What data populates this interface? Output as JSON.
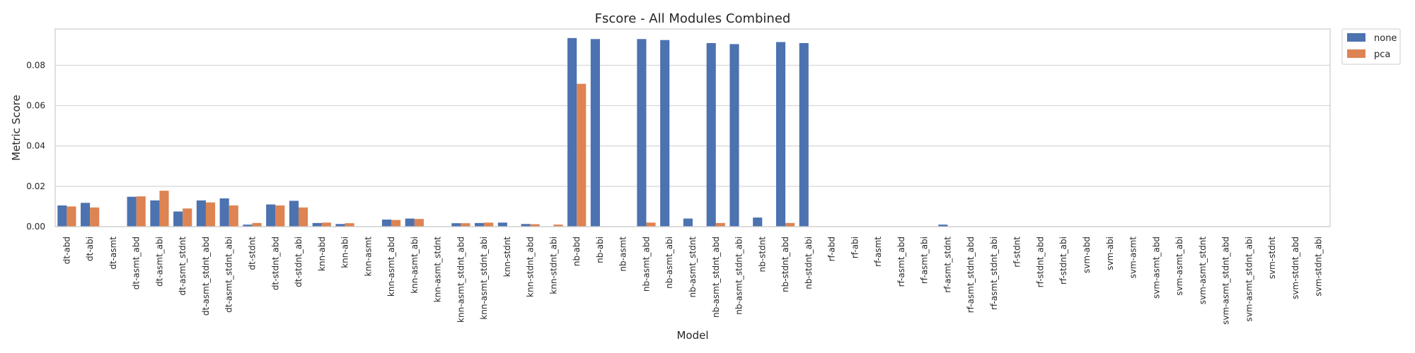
{
  "chart_data": {
    "type": "bar",
    "title": "Fscore - All Modules Combined",
    "xlabel": "Model",
    "ylabel": "Metric Score",
    "ylim": [
      0,
      0.098
    ],
    "yticks": [
      "0.00",
      "0.02",
      "0.04",
      "0.06",
      "0.08"
    ],
    "grid": true,
    "legend_position": "outside-top-right",
    "categories": [
      "dt-abd",
      "dt-abi",
      "dt-asmt",
      "dt-asmt_abd",
      "dt-asmt_abi",
      "dt-asmt_stdnt",
      "dt-asmt_stdnt_abd",
      "dt-asmt_stdnt_abi",
      "dt-stdnt",
      "dt-stdnt_abd",
      "dt-stdnt_abi",
      "knn-abd",
      "knn-abi",
      "knn-asmt",
      "knn-asmt_abd",
      "knn-asmt_abi",
      "knn-asmt_stdnt",
      "knn-asmt_stdnt_abd",
      "knn-asmt_stdnt_abi",
      "knn-stdnt",
      "knn-stdnt_abd",
      "knn-stdnt_abi",
      "nb-abd",
      "nb-abi",
      "nb-asmt",
      "nb-asmt_abd",
      "nb-asmt_abi",
      "nb-asmt_stdnt",
      "nb-asmt_stdnt_abd",
      "nb-asmt_stdnt_abi",
      "nb-stdnt",
      "nb-stdnt_abd",
      "nb-stdnt_abi",
      "rf-abd",
      "rf-abi",
      "rf-asmt",
      "rf-asmt_abd",
      "rf-asmt_abi",
      "rf-asmt_stdnt",
      "rf-asmt_stdnt_abd",
      "rf-asmt_stdnt_abi",
      "rf-stdnt",
      "rf-stdnt_abd",
      "rf-stdnt_abi",
      "svm-abd",
      "svm-abi",
      "svm-asmt",
      "svm-asmt_abd",
      "svm-asmt_abi",
      "svm-asmt_stdnt",
      "svm-asmt_stdnt_abd",
      "svm-asmt_stdnt_abi",
      "svm-stdnt",
      "svm-stdnt_abd",
      "svm-stdnt_abi"
    ],
    "series": [
      {
        "name": "none",
        "color": "#4c72b0",
        "values": [
          0.0105,
          0.0118,
          0.0,
          0.0148,
          0.013,
          0.0075,
          0.013,
          0.014,
          0.001,
          0.011,
          0.0128,
          0.0018,
          0.0013,
          0.0,
          0.0035,
          0.004,
          0.0,
          0.0017,
          0.0018,
          0.002,
          0.0013,
          0.0,
          0.0935,
          0.093,
          0.0,
          0.093,
          0.0925,
          0.004,
          0.091,
          0.0905,
          0.0045,
          0.0915,
          0.091,
          0.0,
          0.0,
          0.0,
          0.0,
          0.0,
          0.001,
          0.0,
          0.0,
          0.0,
          0.0,
          0.0,
          0.0,
          0.0,
          0.0,
          0.0,
          0.0,
          0.0,
          0.0,
          0.0,
          0.0,
          0.0,
          0.0
        ]
      },
      {
        "name": "pca",
        "color": "#dd8452",
        "values": [
          0.01,
          0.0095,
          0.0,
          0.015,
          0.0178,
          0.009,
          0.012,
          0.0105,
          0.0018,
          0.0105,
          0.0095,
          0.002,
          0.0017,
          0.0,
          0.0033,
          0.0038,
          0.0,
          0.0017,
          0.002,
          0.0,
          0.0012,
          0.001,
          0.0708,
          0.0,
          0.0,
          0.002,
          0.0,
          0.0,
          0.0018,
          0.0,
          0.0,
          0.0018,
          0.0,
          0.0,
          0.0,
          0.0,
          0.0,
          0.0,
          0.0,
          0.0,
          0.0,
          0.0,
          0.0,
          0.0,
          0.0,
          0.0,
          0.0,
          0.0,
          0.0,
          0.0,
          0.0,
          0.0,
          0.0,
          0.0,
          0.0
        ]
      }
    ]
  }
}
